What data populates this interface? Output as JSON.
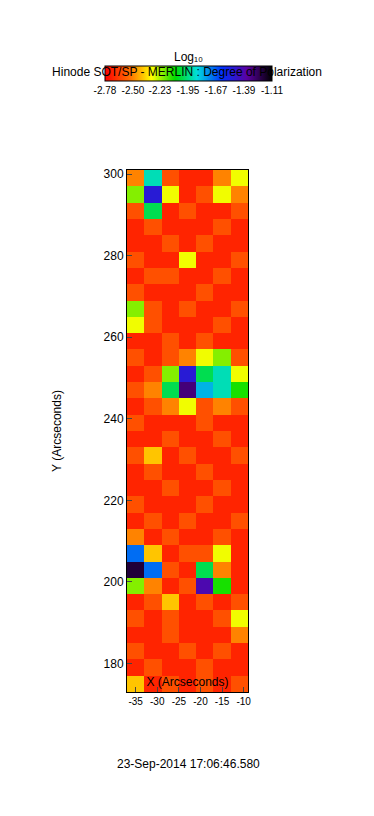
{
  "chart_data": {
    "type": "heatmap",
    "title": "Hinode SOT/SP - MERLIN : Degree of Polarization",
    "xlabel": "X (Arcseconds)",
    "ylabel": "Y (Arcseconds)",
    "annotations": [
      "23-Sep-2014 17:06:46.580"
    ],
    "colorbar_title": "Log₁₀",
    "colorbar_range": [
      -2.78,
      -1.11
    ],
    "colorbar_ticks": [
      -2.78,
      {
        "value": -2.5,
        "label": "-2.50"
      },
      -2.23,
      -1.95,
      -1.67,
      -1.39,
      -1.11
    ],
    "xlim": [
      -37,
      -9
    ],
    "ylim": [
      173,
      301
    ],
    "xticks": [
      -35,
      -30,
      -25,
      -20,
      -15,
      -10
    ],
    "yticks": [
      180,
      200,
      220,
      240,
      260,
      280,
      300
    ],
    "x": [
      -35,
      -31,
      -27,
      -23,
      -19,
      -15,
      -11
    ],
    "y": [
      175,
      179,
      183,
      187,
      191,
      195,
      199,
      203,
      207,
      211,
      215,
      219,
      223,
      227,
      231,
      235,
      239,
      243,
      247,
      251,
      255,
      259,
      263,
      267,
      271,
      275,
      279,
      283,
      287,
      291,
      295,
      299
    ],
    "z": [
      [
        -2.4,
        -2.7,
        -2.6,
        -2.7,
        -2.6,
        -2.7,
        -2.6
      ],
      [
        -2.7,
        -2.6,
        -2.7,
        -2.7,
        -2.6,
        -2.7,
        -2.7
      ],
      [
        -2.6,
        -2.7,
        -2.7,
        -2.6,
        -2.7,
        -2.6,
        -2.7
      ],
      [
        -2.7,
        -2.7,
        -2.6,
        -2.7,
        -2.7,
        -2.7,
        -2.5
      ],
      [
        -2.6,
        -2.7,
        -2.6,
        -2.7,
        -2.7,
        -2.6,
        -2.3
      ],
      [
        -2.7,
        -2.6,
        -2.4,
        -2.7,
        -2.6,
        -2.7,
        -2.6
      ],
      [
        -2.2,
        -2.5,
        -2.7,
        -2.6,
        -1.4,
        -2.1,
        -2.7
      ],
      [
        -1.2,
        -1.7,
        -2.6,
        -2.7,
        -2.0,
        -2.5,
        -2.7
      ],
      [
        -1.7,
        -2.4,
        -2.7,
        -2.6,
        -2.6,
        -2.3,
        -2.7
      ],
      [
        -2.5,
        -2.7,
        -2.6,
        -2.7,
        -2.7,
        -2.6,
        -2.7
      ],
      [
        -2.7,
        -2.6,
        -2.7,
        -2.6,
        -2.7,
        -2.7,
        -2.6
      ],
      [
        -2.6,
        -2.7,
        -2.7,
        -2.7,
        -2.6,
        -2.7,
        -2.7
      ],
      [
        -2.7,
        -2.7,
        -2.6,
        -2.7,
        -2.7,
        -2.6,
        -2.7
      ],
      [
        -2.7,
        -2.6,
        -2.7,
        -2.7,
        -2.6,
        -2.7,
        -2.7
      ],
      [
        -2.6,
        -2.4,
        -2.7,
        -2.6,
        -2.7,
        -2.7,
        -2.6
      ],
      [
        -2.7,
        -2.7,
        -2.6,
        -2.7,
        -2.7,
        -2.6,
        -2.7
      ],
      [
        -2.6,
        -2.7,
        -2.7,
        -2.7,
        -2.6,
        -2.7,
        -2.7
      ],
      [
        -2.7,
        -2.6,
        -2.5,
        -2.3,
        -2.6,
        -2.5,
        -2.6
      ],
      [
        -2.6,
        -2.5,
        -2.0,
        -1.3,
        -1.8,
        -1.9,
        -2.1
      ],
      [
        -2.7,
        -2.6,
        -2.2,
        -1.5,
        -2.0,
        -1.9,
        -2.3
      ],
      [
        -2.6,
        -2.7,
        -2.6,
        -2.5,
        -2.3,
        -2.2,
        -2.6
      ],
      [
        -2.7,
        -2.7,
        -2.6,
        -2.7,
        -2.6,
        -2.7,
        -2.7
      ],
      [
        -2.3,
        -2.6,
        -2.7,
        -2.7,
        -2.7,
        -2.6,
        -2.7
      ],
      [
        -2.2,
        -2.6,
        -2.7,
        -2.6,
        -2.7,
        -2.7,
        -2.6
      ],
      [
        -2.6,
        -2.7,
        -2.7,
        -2.7,
        -2.6,
        -2.7,
        -2.7
      ],
      [
        -2.7,
        -2.6,
        -2.6,
        -2.7,
        -2.7,
        -2.6,
        -2.7
      ],
      [
        -2.6,
        -2.7,
        -2.7,
        -2.3,
        -2.7,
        -2.7,
        -2.6
      ],
      [
        -2.7,
        -2.7,
        -2.6,
        -2.7,
        -2.6,
        -2.7,
        -2.7
      ],
      [
        -2.7,
        -2.6,
        -2.7,
        -2.7,
        -2.7,
        -2.6,
        -2.7
      ],
      [
        -2.6,
        -2.0,
        -2.7,
        -2.6,
        -2.7,
        -2.7,
        -2.6
      ],
      [
        -2.2,
        -1.5,
        -2.3,
        -2.7,
        -2.6,
        -2.3,
        -2.5
      ],
      [
        -2.5,
        -1.9,
        -2.6,
        -2.7,
        -2.7,
        -2.5,
        -2.3
      ]
    ]
  }
}
